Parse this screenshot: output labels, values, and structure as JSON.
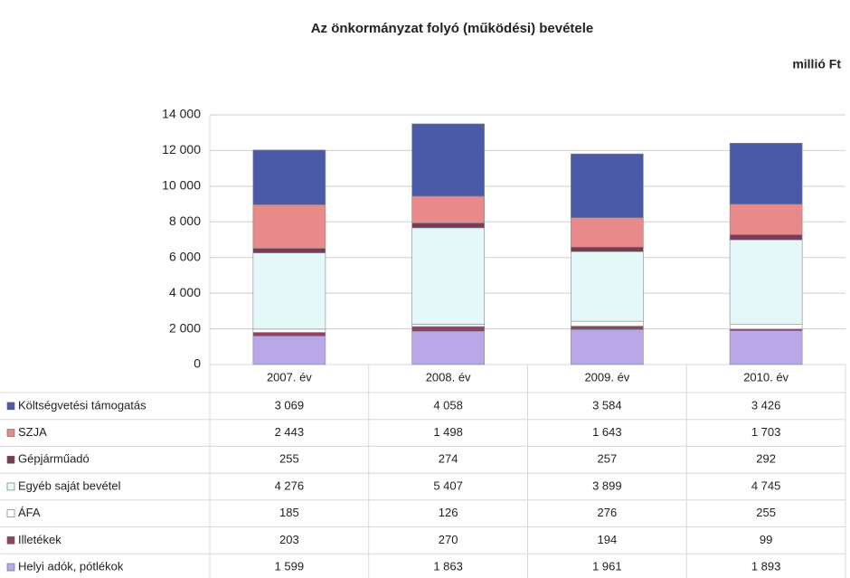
{
  "chart_data": {
    "type": "stacked_bar",
    "title": "Az önkormányzat folyó (működési) bevétele",
    "unit_label": "millió Ft",
    "categories": [
      "2007. év",
      "2008. év",
      "2009. év",
      "2010. év"
    ],
    "series": [
      {
        "name": "Költségvetési támogatás",
        "color": "#4b5aa6",
        "values": [
          3069,
          4058,
          3584,
          3426
        ],
        "value_labels": [
          "3 069",
          "4 058",
          "3 584",
          "3 426"
        ]
      },
      {
        "name": "SZJA",
        "color": "#e98a8a",
        "values": [
          2443,
          1498,
          1643,
          1703
        ],
        "value_labels": [
          "2 443",
          "1 498",
          "1 643",
          "1 703"
        ]
      },
      {
        "name": "Gépjárműadó",
        "color": "#7b3a55",
        "values": [
          255,
          274,
          257,
          292
        ]
      },
      {
        "name": "Egyéb saját bevétel",
        "color": "#e4f8f8",
        "values": [
          4276,
          5407,
          3899,
          4745
        ],
        "value_labels": [
          "4 276",
          "5 407",
          "3 899",
          "4 745"
        ]
      },
      {
        "name": "ÁFA",
        "color": "#ffffff",
        "values": [
          185,
          126,
          276,
          255
        ]
      },
      {
        "name": "Illetékek",
        "color": "#8c4562",
        "values": [
          203,
          270,
          194,
          99
        ]
      },
      {
        "name": "Helyi adók, pótlékok",
        "color": "#b9a8e8",
        "values": [
          1599,
          1863,
          1961,
          1893
        ],
        "value_labels": [
          "1 599",
          "1 863",
          "1 961",
          "1 893"
        ]
      }
    ],
    "ylim": [
      0,
      14000
    ],
    "yticks": [
      0,
      {
        "value": 2000,
        "label": "2 000"
      },
      {
        "value": 4000,
        "label": "4 000"
      },
      {
        "value": 6000,
        "label": "6 000"
      },
      {
        "value": 8000,
        "label": "8 000"
      },
      {
        "value": 10000,
        "label": "10 000"
      },
      {
        "value": 12000,
        "label": "12 000"
      },
      {
        "value": 14000,
        "label": "14 000"
      }
    ],
    "grid": true
  }
}
